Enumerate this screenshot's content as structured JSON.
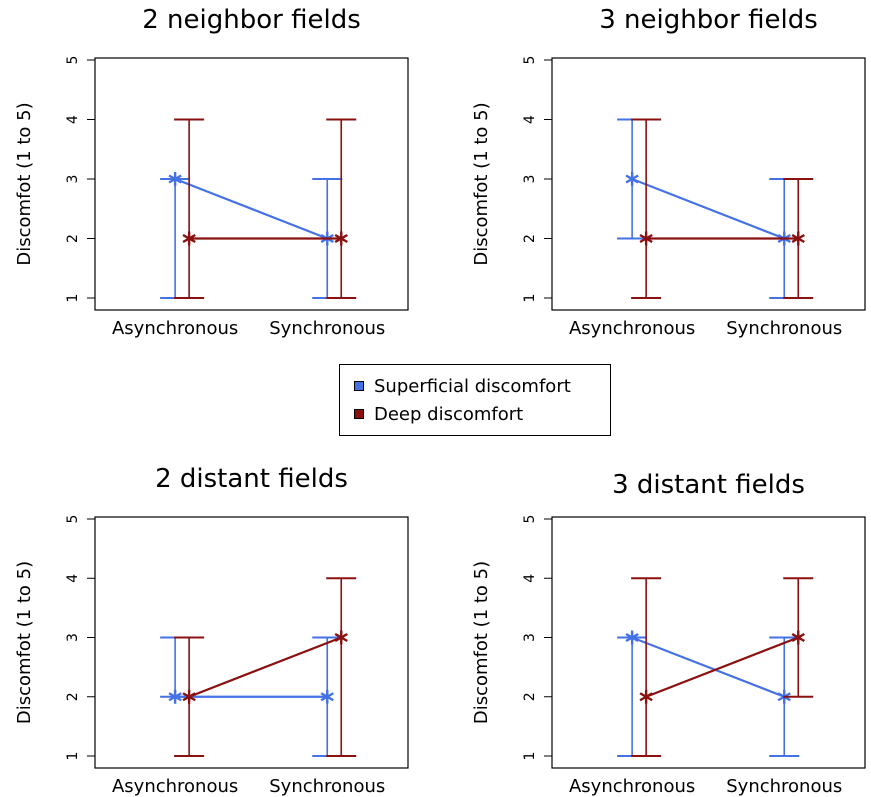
{
  "legend": {
    "items": [
      {
        "label": "Superficial discomfort",
        "color": "#4472e6"
      },
      {
        "label": "Deep discomfort",
        "color": "#8b1010"
      }
    ]
  },
  "chart_data": [
    {
      "type": "line",
      "title": "2 neighbor fields",
      "ylabel": "Discomfot (1 to 5)",
      "xlabel": "",
      "categories": [
        "Asynchronous",
        "Synchronous"
      ],
      "ylim": [
        1,
        5
      ],
      "yticks": [
        "1",
        "2",
        "3",
        "4",
        "5"
      ],
      "series": [
        {
          "name": "Superficial discomfort",
          "color": "#4472e6",
          "values": [
            3,
            2
          ],
          "low": [
            1,
            1
          ],
          "high": [
            3,
            3
          ]
        },
        {
          "name": "Deep discomfort",
          "color": "#8b1010",
          "values": [
            2,
            2
          ],
          "low": [
            1,
            1
          ],
          "high": [
            4,
            4
          ]
        }
      ]
    },
    {
      "type": "line",
      "title": "3 neighbor fields",
      "ylabel": "Discomfot (1 to 5)",
      "xlabel": "",
      "categories": [
        "Asynchronous",
        "Synchronous"
      ],
      "ylim": [
        1,
        5
      ],
      "yticks": [
        "1",
        "2",
        "3",
        "4",
        "5"
      ],
      "series": [
        {
          "name": "Superficial discomfort",
          "color": "#4472e6",
          "values": [
            3,
            2
          ],
          "low": [
            2,
            1
          ],
          "high": [
            4,
            3
          ]
        },
        {
          "name": "Deep discomfort",
          "color": "#8b1010",
          "values": [
            2,
            2
          ],
          "low": [
            1,
            1
          ],
          "high": [
            4,
            3
          ]
        }
      ]
    },
    {
      "type": "line",
      "title": "2 distant fields",
      "ylabel": "Discomfot (1 to 5)",
      "xlabel": "",
      "categories": [
        "Asynchronous",
        "Synchronous"
      ],
      "ylim": [
        1,
        5
      ],
      "yticks": [
        "1",
        "2",
        "3",
        "4",
        "5"
      ],
      "series": [
        {
          "name": "Superficial discomfort",
          "color": "#4472e6",
          "values": [
            2,
            2
          ],
          "low": [
            2,
            1
          ],
          "high": [
            3,
            3
          ]
        },
        {
          "name": "Deep discomfort",
          "color": "#8b1010",
          "values": [
            2,
            3
          ],
          "low": [
            1,
            1
          ],
          "high": [
            3,
            4
          ]
        }
      ]
    },
    {
      "type": "line",
      "title": "3 distant fields",
      "ylabel": "Discomfot (1 to 5)",
      "xlabel": "",
      "categories": [
        "Asynchronous",
        "Synchronous"
      ],
      "ylim": [
        1,
        5
      ],
      "yticks": [
        "1",
        "2",
        "3",
        "4",
        "5"
      ],
      "series": [
        {
          "name": "Superficial discomfort",
          "color": "#4472e6",
          "values": [
            3,
            2
          ],
          "low": [
            1,
            1
          ],
          "high": [
            3,
            3
          ]
        },
        {
          "name": "Deep discomfort",
          "color": "#8b1010",
          "values": [
            2,
            3
          ],
          "low": [
            1,
            2
          ],
          "high": [
            4,
            4
          ]
        }
      ]
    }
  ]
}
